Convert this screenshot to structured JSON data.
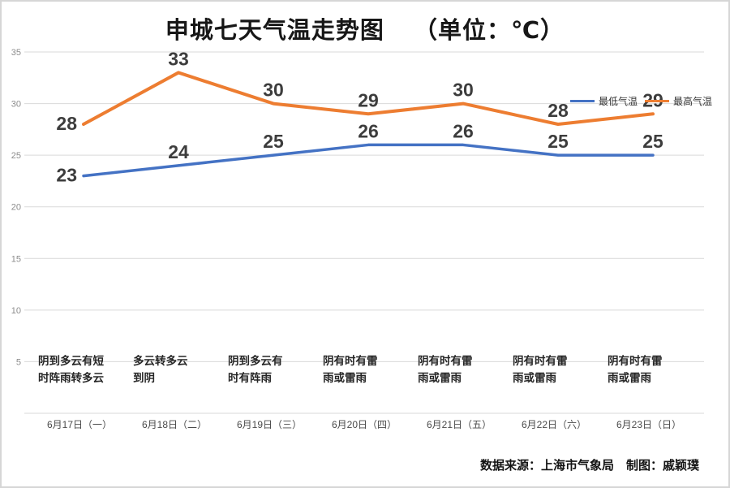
{
  "title": {
    "main": "申城七天气温走势图",
    "unit": "（单位：℃）"
  },
  "legend": [
    {
      "label": "最低气温",
      "color": "#4472c4"
    },
    {
      "label": "最高气温",
      "color": "#ed7d31"
    }
  ],
  "footer": "数据来源：上海市气象局　制图：戚颖璞",
  "chart_data": {
    "type": "line",
    "title": "申城七天气温走势图（单位：℃）",
    "categories": [
      "6月17日（一）",
      "6月18日（二）",
      "6月19日（三）",
      "6月20日（四）",
      "6月21日（五）",
      "6月22日（六）",
      "6月23日（日）"
    ],
    "weather": [
      [
        "阴到多云有短",
        "时阵雨转多云"
      ],
      [
        "多云转多云",
        "到阴"
      ],
      [
        "阴到多云有",
        "时有阵雨"
      ],
      [
        "阴有时有雷",
        "雨或雷雨"
      ],
      [
        "阴有时有雷",
        "雨或雷雨"
      ],
      [
        "阴有时有雷",
        "雨或雷雨"
      ],
      [
        "阴有时有雷",
        "雨或雷雨"
      ]
    ],
    "series": [
      {
        "name": "最低气温",
        "color": "#4472c4",
        "values": [
          23,
          24,
          25,
          26,
          26,
          25,
          25
        ]
      },
      {
        "name": "最高气温",
        "color": "#ed7d31",
        "values": [
          28,
          33,
          30,
          29,
          30,
          28,
          29
        ]
      }
    ],
    "xlabel": "",
    "ylabel": "",
    "ylim": [
      0,
      35
    ],
    "yticks": [
      5,
      10,
      15,
      20,
      25,
      30,
      35
    ],
    "grid": true,
    "legend_position": "right-upper"
  }
}
